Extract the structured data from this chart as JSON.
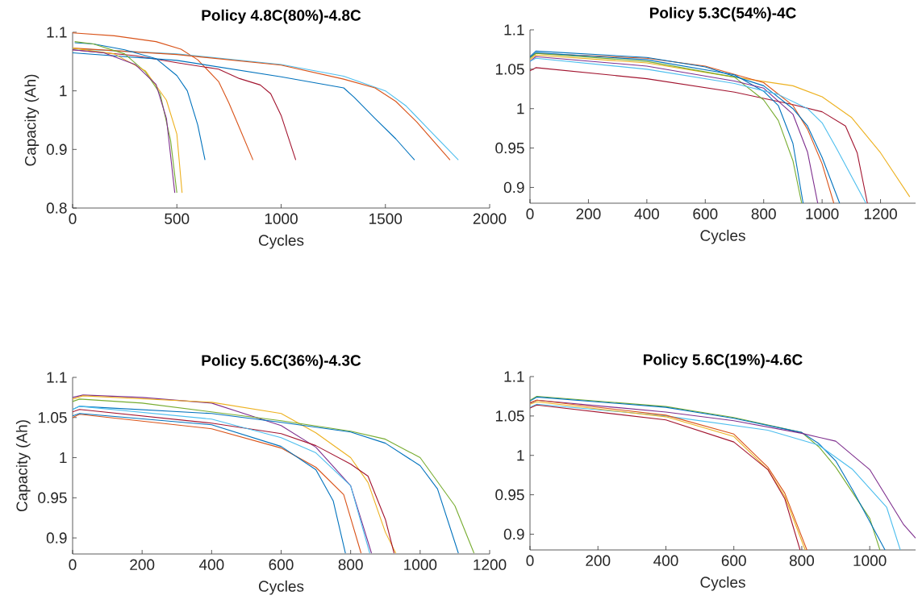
{
  "chart_data": [
    {
      "type": "line",
      "title": "Policy 4.8C(80%)-4.8C",
      "xlabel": "Cycles",
      "ylabel": "Capacity (Ah)",
      "xlim": [
        0,
        2000
      ],
      "ylim": [
        0.8,
        1.1
      ],
      "xticks": [
        0,
        500,
        1000,
        1500,
        2000
      ],
      "yticks": [
        0.8,
        0.9,
        1,
        1.1
      ],
      "series": [
        {
          "color": "#d95319",
          "x": [
            0,
            200,
            400,
            520,
            600,
            700,
            750,
            800,
            865
          ],
          "values": [
            1.099,
            1.094,
            1.084,
            1.071,
            1.053,
            1.016,
            0.979,
            0.937,
            0.882
          ]
        },
        {
          "color": "#a2142f",
          "x": [
            0,
            300,
            500,
            700,
            800,
            900,
            950,
            1000,
            1070
          ],
          "values": [
            1.07,
            1.06,
            1.048,
            1.037,
            1.021,
            1.01,
            0.995,
            0.958,
            0.882
          ]
        },
        {
          "color": "#0072bd",
          "x": [
            0,
            500,
            1000,
            1300,
            1350,
            1450,
            1550,
            1640
          ],
          "values": [
            1.065,
            1.052,
            1.024,
            1.005,
            0.989,
            0.953,
            0.918,
            0.882
          ]
        },
        {
          "color": "#4dbeee",
          "x": [
            0,
            500,
            1000,
            1300,
            1500,
            1600,
            1700,
            1850
          ],
          "values": [
            1.072,
            1.063,
            1.045,
            1.025,
            1.0,
            0.974,
            0.937,
            0.882
          ]
        },
        {
          "color": "#d95319",
          "x": [
            0,
            500,
            1000,
            1300,
            1450,
            1550,
            1650,
            1810
          ],
          "values": [
            1.073,
            1.062,
            1.044,
            1.02,
            1.005,
            0.982,
            0.947,
            0.882
          ]
        },
        {
          "color": "#0072bd",
          "x": [
            10,
            100,
            250,
            400,
            500,
            550,
            600,
            635
          ],
          "values": [
            1.082,
            1.08,
            1.07,
            1.055,
            1.026,
            1.0,
            0.942,
            0.882
          ]
        },
        {
          "color": "#77ac30",
          "x": [
            10,
            100,
            250,
            350,
            420,
            470,
            500
          ],
          "values": [
            1.084,
            1.08,
            1.063,
            1.032,
            0.995,
            0.915,
            0.826
          ]
        },
        {
          "color": "#edb120",
          "x": [
            0,
            200,
            350,
            450,
            500,
            525
          ],
          "values": [
            1.073,
            1.063,
            1.034,
            0.984,
            0.926,
            0.826
          ]
        },
        {
          "color": "#7e2f8e",
          "x": [
            0,
            150,
            300,
            400,
            450,
            490
          ],
          "values": [
            1.07,
            1.065,
            1.045,
            1.011,
            0.953,
            0.826
          ]
        }
      ]
    },
    {
      "type": "line",
      "title": "Policy 5.3C(54%)-4C",
      "xlabel": "Cycles",
      "xlim": [
        0,
        1320
      ],
      "ylim": [
        0.88,
        1.1
      ],
      "xticks": [
        0,
        200,
        400,
        600,
        800,
        1000,
        1200
      ],
      "yticks": [
        0.9,
        0.95,
        1,
        1.05,
        1.1
      ],
      "series": [
        {
          "color": "#a2142f",
          "x": [
            0,
            20,
            400,
            700,
            900,
            1000,
            1080,
            1120,
            1155
          ],
          "values": [
            1.048,
            1.052,
            1.038,
            1.021,
            1.005,
            0.996,
            0.978,
            0.944,
            0.88
          ]
        },
        {
          "color": "#edb120",
          "x": [
            0,
            20,
            400,
            700,
            900,
            1000,
            1100,
            1200,
            1300
          ],
          "values": [
            1.062,
            1.068,
            1.058,
            1.04,
            1.029,
            1.015,
            0.989,
            0.944,
            0.888
          ]
        },
        {
          "color": "#d95319",
          "x": [
            0,
            20,
            400,
            600,
            800,
            900,
            950,
            1000,
            1040
          ],
          "values": [
            1.065,
            1.07,
            1.064,
            1.054,
            1.033,
            1.004,
            0.974,
            0.93,
            0.88
          ]
        },
        {
          "color": "#0072bd",
          "x": [
            0,
            20,
            400,
            600,
            800,
            900,
            950,
            1000,
            1060
          ],
          "values": [
            1.066,
            1.073,
            1.065,
            1.053,
            1.029,
            1.0,
            0.978,
            0.938,
            0.88
          ]
        },
        {
          "color": "#0072bd",
          "x": [
            0,
            20,
            400,
            700,
            800,
            850,
            900,
            935
          ],
          "values": [
            1.065,
            1.071,
            1.062,
            1.043,
            1.022,
            1.004,
            0.956,
            0.88
          ]
        },
        {
          "color": "#77ac30",
          "x": [
            0,
            20,
            400,
            700,
            800,
            850,
            900,
            930
          ],
          "values": [
            1.064,
            1.07,
            1.06,
            1.04,
            1.011,
            0.985,
            0.934,
            0.88
          ]
        },
        {
          "color": "#7e2f8e",
          "x": [
            0,
            20,
            400,
            700,
            800,
            900,
            950,
            985
          ],
          "values": [
            1.06,
            1.066,
            1.054,
            1.035,
            1.026,
            0.993,
            0.945,
            0.88
          ]
        },
        {
          "color": "#4dbeee",
          "x": [
            0,
            20,
            400,
            700,
            850,
            950,
            1000,
            1050,
            1150
          ],
          "values": [
            1.06,
            1.064,
            1.05,
            1.032,
            1.018,
            1.0,
            0.982,
            0.949,
            0.88
          ]
        }
      ]
    },
    {
      "type": "line",
      "title": "Policy 5.6C(36%)-4.3C",
      "xlabel": "Cycles",
      "ylabel": "Capacity (Ah)",
      "xlim": [
        0,
        1200
      ],
      "ylim": [
        0.88,
        1.1
      ],
      "xticks": [
        0,
        200,
        400,
        600,
        800,
        1000,
        1200
      ],
      "yticks": [
        0.9,
        0.95,
        1,
        1.05,
        1.1
      ],
      "series": [
        {
          "color": "#7e2f8e",
          "x": [
            0,
            30,
            200,
            400,
            600,
            700,
            800,
            860
          ],
          "values": [
            1.075,
            1.078,
            1.075,
            1.068,
            1.04,
            1.013,
            0.965,
            0.881
          ]
        },
        {
          "color": "#edb120",
          "x": [
            0,
            30,
            400,
            600,
            700,
            800,
            850,
            900,
            930
          ],
          "values": [
            1.073,
            1.077,
            1.069,
            1.055,
            1.031,
            1.0,
            0.969,
            0.907,
            0.881
          ]
        },
        {
          "color": "#77ac30",
          "x": [
            0,
            20,
            200,
            600,
            800,
            900,
            1000,
            1100,
            1155
          ],
          "values": [
            1.07,
            1.073,
            1.068,
            1.046,
            1.033,
            1.023,
            1.0,
            0.94,
            0.881
          ]
        },
        {
          "color": "#0072bd",
          "x": [
            0,
            20,
            400,
            600,
            800,
            900,
            1000,
            1050,
            1110
          ],
          "values": [
            1.06,
            1.064,
            1.055,
            1.044,
            1.032,
            1.018,
            0.99,
            0.961,
            0.881
          ]
        },
        {
          "color": "#a2142f",
          "x": [
            0,
            20,
            400,
            600,
            700,
            800,
            850,
            900,
            925
          ],
          "values": [
            1.057,
            1.06,
            1.043,
            1.03,
            1.015,
            0.992,
            0.977,
            0.923,
            0.881
          ]
        },
        {
          "color": "#4dbeee",
          "x": [
            0,
            20,
            400,
            600,
            700,
            800,
            855
          ],
          "values": [
            1.06,
            1.064,
            1.048,
            1.025,
            1.006,
            0.965,
            0.881
          ]
        },
        {
          "color": "#d95319",
          "x": [
            0,
            20,
            400,
            600,
            700,
            780,
            830
          ],
          "values": [
            1.05,
            1.054,
            1.036,
            1.012,
            0.988,
            0.954,
            0.881
          ]
        },
        {
          "color": "#0072bd",
          "x": [
            0,
            20,
            400,
            600,
            700,
            750,
            785
          ],
          "values": [
            1.052,
            1.055,
            1.041,
            1.014,
            0.985,
            0.946,
            0.881
          ]
        }
      ]
    },
    {
      "type": "line",
      "title": "Policy 5.6C(19%)-4.6C",
      "xlabel": "Cycles",
      "xlim": [
        0,
        1135
      ],
      "ylim": [
        0.88,
        1.1
      ],
      "xticks": [
        0,
        200,
        400,
        600,
        800,
        1000
      ],
      "yticks": [
        0.9,
        0.95,
        1,
        1.05,
        1.1
      ],
      "series": [
        {
          "color": "#77ac30",
          "x": [
            0,
            20,
            400,
            600,
            800,
            850,
            900,
            1000,
            1030
          ],
          "values": [
            1.07,
            1.075,
            1.062,
            1.048,
            1.029,
            1.011,
            0.985,
            0.92,
            0.88
          ]
        },
        {
          "color": "#0072bd",
          "x": [
            0,
            20,
            400,
            600,
            800,
            850,
            900,
            950,
            1045
          ],
          "values": [
            1.069,
            1.074,
            1.061,
            1.047,
            1.029,
            1.015,
            0.993,
            0.956,
            0.88
          ]
        },
        {
          "color": "#7e2f8e",
          "x": [
            0,
            20,
            400,
            600,
            800,
            900,
            1000,
            1100,
            1135
          ],
          "values": [
            1.066,
            1.07,
            1.055,
            1.044,
            1.028,
            1.018,
            0.982,
            0.912,
            0.895
          ]
        },
        {
          "color": "#4dbeee",
          "x": [
            0,
            20,
            400,
            700,
            850,
            950,
            1050,
            1090
          ],
          "values": [
            1.061,
            1.065,
            1.05,
            1.032,
            1.013,
            0.982,
            0.934,
            0.88
          ]
        },
        {
          "color": "#d95319",
          "x": [
            0,
            20,
            400,
            600,
            700,
            750,
            815
          ],
          "values": [
            1.067,
            1.07,
            1.051,
            1.027,
            0.985,
            0.952,
            0.88
          ]
        },
        {
          "color": "#edb120",
          "x": [
            0,
            20,
            400,
            600,
            700,
            750,
            810
          ],
          "values": [
            1.065,
            1.068,
            1.049,
            1.024,
            0.982,
            0.948,
            0.88
          ]
        },
        {
          "color": "#a2142f",
          "x": [
            0,
            20,
            400,
            600,
            700,
            750,
            795
          ],
          "values": [
            1.06,
            1.064,
            1.045,
            1.017,
            0.982,
            0.945,
            0.88
          ]
        }
      ]
    }
  ]
}
